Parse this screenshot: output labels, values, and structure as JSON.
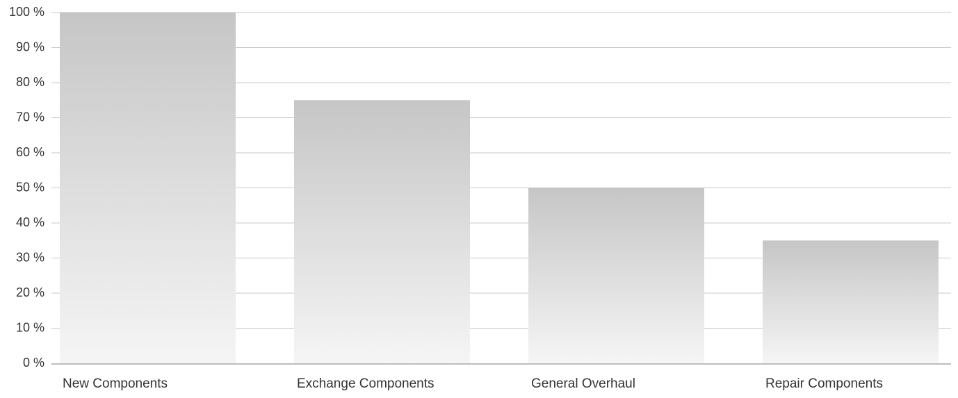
{
  "chart_data": {
    "type": "bar",
    "title": "",
    "xlabel": "",
    "ylabel": "",
    "categories": [
      "New Components",
      "Exchange Components",
      "General Overhaul",
      "Repair Components"
    ],
    "values": [
      100,
      75,
      50,
      35
    ],
    "ylim": [
      0,
      100
    ],
    "yticks": [
      0,
      10,
      20,
      30,
      40,
      50,
      60,
      70,
      80,
      90,
      100
    ],
    "ytick_labels": [
      "0 %",
      "10 %",
      "20 %",
      "30 %",
      "40 %",
      "50 %",
      "60 %",
      "70 %",
      "80 %",
      "90 %",
      "100 %"
    ],
    "grid": true,
    "legend": "none",
    "colors": {
      "bar_top": "#c6c6c6",
      "bar_bottom": "#f5f5f5",
      "grid": "#c8c8c8",
      "axis": "#bdbdbd",
      "text": "#333333"
    }
  }
}
